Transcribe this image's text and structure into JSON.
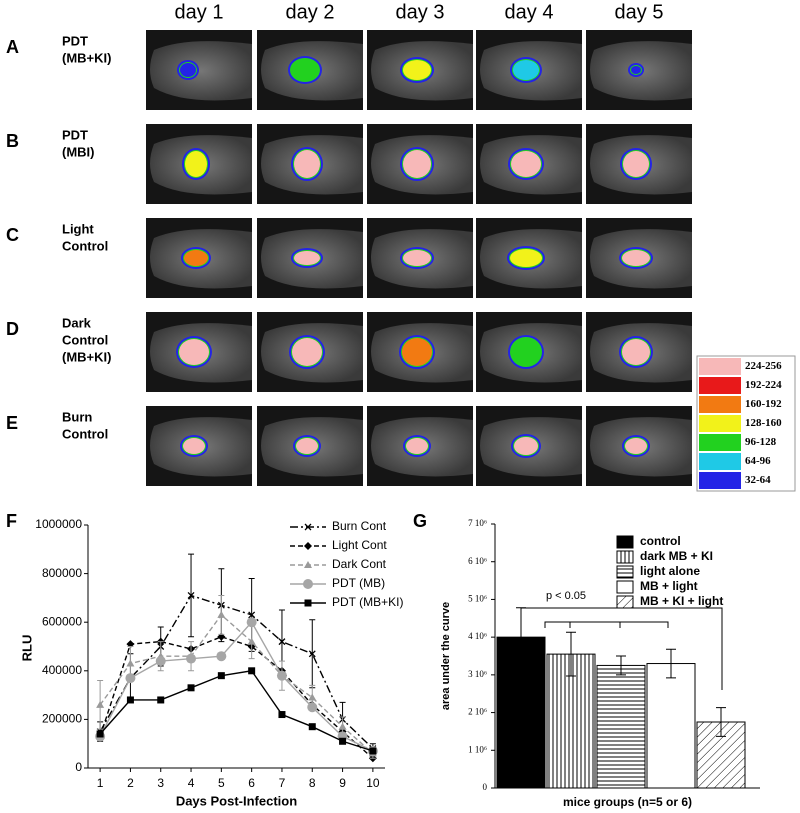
{
  "figure": {
    "columns": [
      "day 1",
      "day 2",
      "day 3",
      "day 4",
      "day 5"
    ],
    "rows": [
      {
        "letter": "A",
        "label_lines": [
          "PDT",
          "(MB+KI)"
        ]
      },
      {
        "letter": "B",
        "label_lines": [
          "PDT",
          "(MBI)"
        ]
      },
      {
        "letter": "C",
        "label_lines": [
          "Light",
          "Control"
        ]
      },
      {
        "letter": "D",
        "label_lines": [
          "Dark",
          "Control",
          "(MB+KI)"
        ]
      },
      {
        "letter": "E",
        "label_lines": [
          "Burn",
          "Control"
        ]
      }
    ],
    "color_scale": [
      {
        "label": "224-256",
        "color": "#f7b8b8"
      },
      {
        "label": "192-224",
        "color": "#e8191a"
      },
      {
        "label": "160-192",
        "color": "#f27a12"
      },
      {
        "label": "128-160",
        "color": "#f2f21a"
      },
      {
        "label": "96-128",
        "color": "#22d11f"
      },
      {
        "label": "64-96",
        "color": "#1fc9e6"
      },
      {
        "label": "32-64",
        "color": "#2424e6"
      }
    ]
  },
  "chart_data": [
    {
      "type": "line",
      "panel": "F",
      "xlabel": "Days Post-Infection",
      "ylabel": "RLU",
      "x": [
        1,
        2,
        3,
        4,
        5,
        6,
        7,
        8,
        9,
        10
      ],
      "xlim": [
        0.6,
        10.4
      ],
      "xticks": [
        1,
        2,
        3,
        4,
        5,
        6,
        7,
        8,
        9,
        10
      ],
      "ylim": [
        0,
        1000000
      ],
      "yticks": [
        0,
        200000,
        400000,
        600000,
        800000,
        1000000
      ],
      "legend": "upper right",
      "series": [
        {
          "name": "Burn Cont",
          "color": "#000000",
          "marker": "x",
          "line_style": "dashdot",
          "values": [
            150000,
            370000,
            500000,
            710000,
            670000,
            630000,
            520000,
            470000,
            200000,
            80000
          ],
          "errors": [
            40000,
            100000,
            80000,
            170000,
            150000,
            150000,
            130000,
            140000,
            70000,
            20000
          ]
        },
        {
          "name": "Light Cont",
          "color": "#000000",
          "marker": "diamond",
          "line_style": "dashed",
          "values": [
            130000,
            510000,
            520000,
            490000,
            540000,
            500000,
            400000,
            260000,
            150000,
            40000
          ]
        },
        {
          "name": "Dark Cont",
          "color": "#9a9a9a",
          "marker": "triangle",
          "line_style": "dashed",
          "values": [
            260000,
            430000,
            460000,
            460000,
            630000,
            520000,
            380000,
            290000,
            170000,
            60000
          ],
          "errors": [
            100000,
            70000,
            60000,
            60000,
            80000,
            70000,
            60000,
            50000,
            40000,
            20000
          ]
        },
        {
          "name": "PDT (MB)",
          "color": "#a6a6a6",
          "marker": "circle",
          "line_style": "solid",
          "values": [
            130000,
            370000,
            440000,
            450000,
            460000,
            600000,
            380000,
            250000,
            130000,
            70000
          ]
        },
        {
          "name": "PDT (MB+KI)",
          "color": "#000000",
          "marker": "square",
          "line_style": "solid",
          "values": [
            140000,
            280000,
            280000,
            330000,
            380000,
            400000,
            220000,
            170000,
            110000,
            70000
          ]
        }
      ]
    },
    {
      "type": "bar",
      "panel": "G",
      "xlabel": "mice groups (n=5 or 6)",
      "ylabel": "area under the curve",
      "categories": [
        "control",
        "dark MB + KI",
        "light alone",
        "MB + light",
        "MB + KI + light"
      ],
      "values": [
        4000000,
        3550000,
        3250000,
        3300000,
        1750000
      ],
      "errors": [
        780000,
        580000,
        250000,
        380000,
        380000
      ],
      "colors": [
        "#000000",
        "#ffffff",
        "#ffffff",
        "#ffffff",
        "#ffffff"
      ],
      "ylim": [
        0,
        7000000
      ],
      "yticks": [
        {
          "value": 0,
          "label": "0"
        },
        {
          "value": 1000000,
          "label": "1 10⁶"
        },
        {
          "value": 2000000,
          "label": "2 10⁶"
        },
        {
          "value": 3000000,
          "label": "3 10⁶"
        },
        {
          "value": 4000000,
          "label": "4 10⁶"
        },
        {
          "value": 5000000,
          "label": "5 10⁶"
        },
        {
          "value": 6000000,
          "label": "6 10⁶"
        },
        {
          "value": 7000000,
          "label": "7 10⁶"
        }
      ],
      "legend": "upper right",
      "annotation": "p < 0.05"
    }
  ]
}
